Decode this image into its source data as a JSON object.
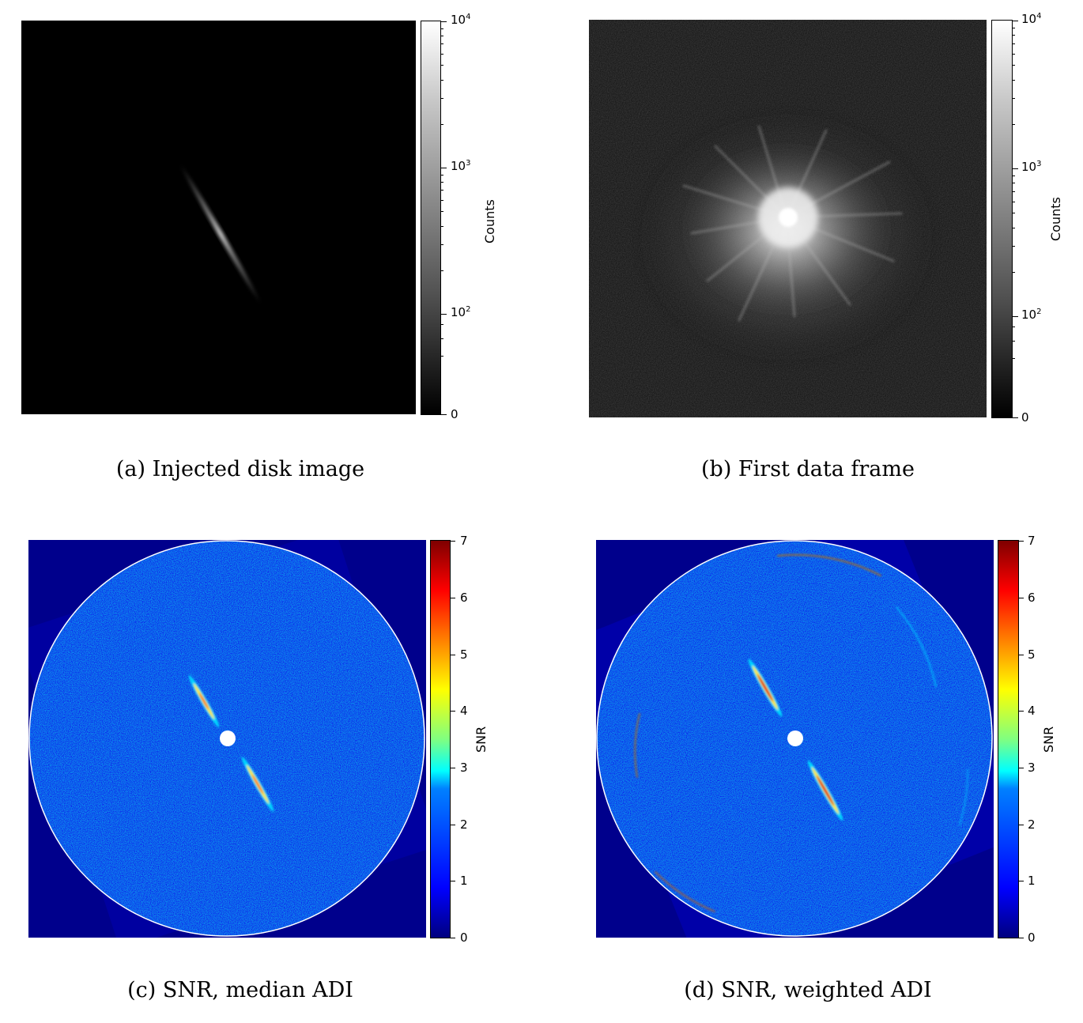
{
  "panels": [
    {
      "id": "a",
      "caption": "(a) Injected disk image",
      "colorbar": {
        "label": "Counts",
        "colormap": "gray",
        "scale": "symlog",
        "ticks": [
          {
            "base": "10",
            "exp": "4"
          },
          {
            "base": "10",
            "exp": "3"
          },
          {
            "base": "10",
            "exp": "2"
          },
          {
            "base": "0",
            "exp": ""
          }
        ]
      }
    },
    {
      "id": "b",
      "caption": "(b) First data frame",
      "colorbar": {
        "label": "Counts",
        "colormap": "gray",
        "scale": "symlog",
        "ticks": [
          {
            "base": "10",
            "exp": "4"
          },
          {
            "base": "10",
            "exp": "3"
          },
          {
            "base": "10",
            "exp": "2"
          },
          {
            "base": "0",
            "exp": ""
          }
        ]
      }
    },
    {
      "id": "c",
      "caption": "(c) SNR, median ADI",
      "colorbar": {
        "label": "SNR",
        "colormap": "jet",
        "scale": "linear",
        "ticks": [
          "7",
          "6",
          "5",
          "4",
          "3",
          "2",
          "1",
          "0"
        ]
      }
    },
    {
      "id": "d",
      "caption": "(d) SNR, weighted ADI",
      "colorbar": {
        "label": "SNR",
        "colormap": "jet",
        "scale": "linear",
        "ticks": [
          "7",
          "6",
          "5",
          "4",
          "3",
          "2",
          "1",
          "0"
        ]
      }
    }
  ]
}
